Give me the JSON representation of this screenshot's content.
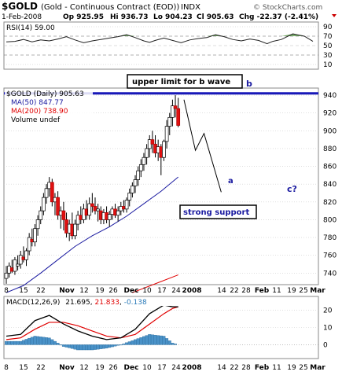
{
  "header": {
    "symbol": "$GOLD",
    "name": "(Gold - Continuous Contract (EOD))",
    "exchange": "INDX",
    "watermark": "© StockCharts.com",
    "date": "1-Feb-2008",
    "op": "Op 925.95",
    "hi": "Hi 936.73",
    "lo": "Lo 904.23",
    "cl": "Cl 905.63",
    "chg": "Chg -22.37 (-2.41%)"
  },
  "chart_data": [
    {
      "type": "line",
      "panel": "rsi",
      "legend": "RSI(14) 59.00",
      "yticks": [
        90,
        70,
        50,
        30,
        10
      ],
      "ylim": [
        0,
        100
      ],
      "x": [
        0,
        3,
        6,
        9,
        12,
        15,
        18,
        21,
        24,
        27,
        30,
        33,
        36,
        39,
        42,
        45,
        48,
        50,
        52,
        55,
        58,
        61,
        64,
        67,
        70,
        73,
        76,
        79,
        82,
        85,
        88,
        91,
        93,
        96,
        100,
        104,
        107
      ],
      "values": [
        58,
        59,
        63,
        58,
        62,
        60,
        64,
        69,
        62,
        56,
        60,
        63,
        66,
        69,
        73,
        67,
        60,
        57,
        61,
        66,
        61,
        56,
        62,
        65,
        67,
        73,
        69,
        63,
        60,
        64,
        61,
        54,
        59,
        63,
        75,
        70,
        59
      ]
    },
    {
      "type": "candlestick",
      "panel": "price",
      "series_name": "$GOLD (Daily) 905.63",
      "ma50_label": "MA(50) 847.77",
      "ma200_label": "MA(200) 738.90",
      "volume_label": "Volume undef",
      "yticks": [
        940,
        920,
        900,
        880,
        860,
        840,
        820,
        800,
        780,
        760,
        740
      ],
      "ylim": [
        727,
        948
      ],
      "resistance": 942,
      "ohlc": [
        [
          0,
          734,
          748,
          728,
          740
        ],
        [
          1,
          740,
          752,
          735,
          748
        ],
        [
          2,
          746,
          755,
          740,
          742
        ],
        [
          3,
          742,
          758,
          738,
          755
        ],
        [
          4,
          748,
          760,
          743,
          750
        ],
        [
          5,
          750,
          765,
          745,
          760
        ],
        [
          6,
          758,
          770,
          752,
          755
        ],
        [
          7,
          755,
          768,
          748,
          765
        ],
        [
          8,
          765,
          785,
          760,
          780
        ],
        [
          9,
          778,
          790,
          770,
          775
        ],
        [
          10,
          775,
          795,
          770,
          790
        ],
        [
          11,
          790,
          805,
          782,
          800
        ],
        [
          12,
          800,
          815,
          795,
          810
        ],
        [
          13,
          810,
          830,
          805,
          825
        ],
        [
          14,
          825,
          840,
          818,
          835
        ],
        [
          15,
          835,
          848,
          826,
          842
        ],
        [
          16,
          842,
          846,
          815,
          820
        ],
        [
          17,
          820,
          830,
          805,
          825
        ],
        [
          18,
          825,
          832,
          800,
          805
        ],
        [
          19,
          805,
          815,
          790,
          810
        ],
        [
          20,
          810,
          820,
          788,
          800
        ],
        [
          21,
          800,
          808,
          780,
          785
        ],
        [
          22,
          785,
          800,
          776,
          795
        ],
        [
          23,
          795,
          808,
          778,
          782
        ],
        [
          24,
          782,
          800,
          778,
          795
        ],
        [
          25,
          795,
          810,
          788,
          805
        ],
        [
          26,
          805,
          815,
          795,
          800
        ],
        [
          27,
          800,
          818,
          796,
          812
        ],
        [
          28,
          812,
          822,
          800,
          805
        ],
        [
          29,
          805,
          825,
          800,
          818
        ],
        [
          30,
          818,
          830,
          808,
          815
        ],
        [
          31,
          815,
          825,
          806,
          810
        ],
        [
          32,
          810,
          818,
          798,
          812
        ],
        [
          33,
          810,
          815,
          795,
          800
        ],
        [
          34,
          800,
          812,
          795,
          808
        ],
        [
          35,
          808,
          815,
          796,
          800
        ],
        [
          36,
          800,
          810,
          792,
          806
        ],
        [
          37,
          806,
          815,
          800,
          812
        ],
        [
          38,
          812,
          818,
          802,
          805
        ],
        [
          39,
          805,
          815,
          798,
          810
        ],
        [
          40,
          810,
          820,
          805,
          815
        ],
        [
          41,
          815,
          822,
          808,
          812
        ],
        [
          42,
          812,
          825,
          808,
          822
        ],
        [
          43,
          822,
          835,
          815,
          830
        ],
        [
          44,
          830,
          842,
          825,
          838
        ],
        [
          45,
          838,
          850,
          830,
          845
        ],
        [
          46,
          845,
          860,
          838,
          855
        ],
        [
          47,
          855,
          868,
          848,
          862
        ],
        [
          48,
          862,
          875,
          855,
          870
        ],
        [
          49,
          870,
          885,
          862,
          880
        ],
        [
          50,
          880,
          895,
          870,
          890
        ],
        [
          51,
          890,
          900,
          875,
          885
        ],
        [
          52,
          885,
          895,
          870,
          875
        ],
        [
          53,
          875,
          890,
          866,
          882
        ],
        [
          54,
          882,
          885,
          850,
          870
        ],
        [
          55,
          870,
          890,
          866,
          888
        ],
        [
          56,
          888,
          912,
          880,
          905
        ],
        [
          57,
          905,
          920,
          895,
          915
        ],
        [
          58,
          915,
          935,
          905,
          928
        ],
        [
          59,
          928,
          940,
          915,
          925
        ],
        [
          60,
          925,
          937,
          904,
          906
        ]
      ],
      "ma50": [
        [
          0,
          718
        ],
        [
          6,
          726
        ],
        [
          12,
          740
        ],
        [
          18,
          755
        ],
        [
          24,
          770
        ],
        [
          30,
          782
        ],
        [
          36,
          792
        ],
        [
          42,
          804
        ],
        [
          48,
          818
        ],
        [
          54,
          832
        ],
        [
          60,
          848
        ]
      ],
      "ma200": [
        [
          44,
          718
        ],
        [
          52,
          728
        ],
        [
          60,
          738
        ]
      ],
      "forecast": [
        [
          62,
          935
        ],
        [
          66,
          878
        ],
        [
          69,
          897
        ],
        [
          75,
          831
        ]
      ],
      "annotations": {
        "upper_limit": "upper limit for b wave",
        "wave_b": "b",
        "wave_a": "a",
        "wave_c": "c?",
        "strong_support": "strong support"
      }
    },
    {
      "type": "line",
      "panel": "macd",
      "legend_main": "MACD(12,26,9)",
      "macd_value": "21.695",
      "signal_value": "21.833",
      "hist_value": "-0.138",
      "yticks": [
        20,
        10,
        0
      ],
      "ylim": [
        -8,
        28
      ],
      "x": [
        0,
        5,
        10,
        15,
        20,
        25,
        30,
        35,
        40,
        45,
        50,
        55,
        58,
        60
      ],
      "macd": [
        5,
        6,
        14,
        17,
        12,
        8,
        5,
        3,
        4,
        9,
        18,
        23,
        22,
        22
      ],
      "signal": [
        3,
        4,
        9,
        13,
        13,
        11,
        8,
        5,
        4,
        6,
        12,
        18,
        21,
        22
      ],
      "histogram": [
        2,
        2,
        5,
        4,
        -1,
        -3,
        -3,
        -2,
        0,
        3,
        6,
        5,
        1,
        0
      ]
    }
  ],
  "x_axis": {
    "labels": [
      "8",
      "15",
      "22",
      "Nov",
      "12",
      "19",
      "26",
      "Dec",
      "10",
      "17",
      "24",
      "2008",
      "14",
      "22",
      "28",
      "Feb",
      "11",
      "19",
      "25",
      "Mar"
    ]
  }
}
